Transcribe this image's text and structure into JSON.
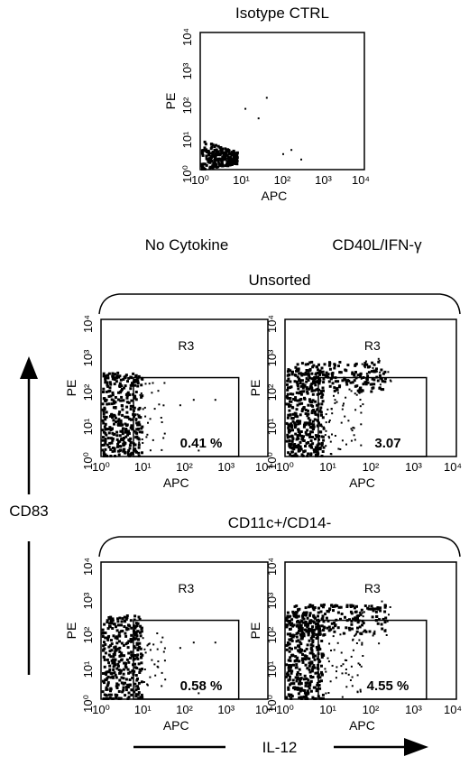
{
  "figure": {
    "top_title": "Isotype CTRL",
    "col_no_cytokine": "No Cytokine",
    "col_cd40l": "CD40L/IFN-γ",
    "group_unsorted": "Unsorted",
    "group_sorted": "CD11c+/CD14-",
    "y_marker": "CD83",
    "x_marker": "IL-12"
  },
  "chart_data": [
    {
      "type": "scatter",
      "title": "Isotype CTRL",
      "xlabel": "APC",
      "ylabel": "PE",
      "scale": "log",
      "xlim": [
        1,
        10000
      ],
      "ylim": [
        1,
        10000
      ],
      "ticks": [
        "10⁰",
        "10¹",
        "10²",
        "10³",
        "10⁴"
      ],
      "gate": null,
      "percentage": ""
    },
    {
      "type": "scatter",
      "group": "Unsorted",
      "condition": "No Cytokine",
      "xlabel": "APC",
      "ylabel": "PE",
      "scale": "log",
      "xlim": [
        1,
        10000
      ],
      "ylim": [
        1,
        10000
      ],
      "ticks": [
        "10⁰",
        "10¹",
        "10²",
        "10³",
        "10⁴"
      ],
      "gate": {
        "name": "R3",
        "x": [
          6,
          2000
        ],
        "y": [
          1,
          200
        ]
      },
      "percentage": "0.41 %"
    },
    {
      "type": "scatter",
      "group": "Unsorted",
      "condition": "CD40L/IFN-γ",
      "xlabel": "APC",
      "ylabel": "PE",
      "scale": "log",
      "xlim": [
        1,
        10000
      ],
      "ylim": [
        1,
        10000
      ],
      "ticks": [
        "10⁰",
        "10¹",
        "10²",
        "10³",
        "10⁴"
      ],
      "gate": {
        "name": "R3",
        "x": [
          6,
          2000
        ],
        "y": [
          1,
          200
        ]
      },
      "percentage": "3.07"
    },
    {
      "type": "scatter",
      "group": "CD11c+/CD14-",
      "condition": "No Cytokine",
      "xlabel": "APC",
      "ylabel": "PE",
      "scale": "log",
      "xlim": [
        1,
        10000
      ],
      "ylim": [
        1,
        10000
      ],
      "ticks": [
        "10⁰",
        "10¹",
        "10²",
        "10³",
        "10⁴"
      ],
      "gate": {
        "name": "R3",
        "x": [
          6,
          2000
        ],
        "y": [
          1,
          200
        ]
      },
      "percentage": "0.58 %"
    },
    {
      "type": "scatter",
      "group": "CD11c+/CD14-",
      "condition": "CD40L/IFN-γ",
      "xlabel": "APC",
      "ylabel": "PE",
      "scale": "log",
      "xlim": [
        1,
        10000
      ],
      "ylim": [
        1,
        10000
      ],
      "ticks": [
        "10⁰",
        "10¹",
        "10²",
        "10³",
        "10⁴"
      ],
      "gate": {
        "name": "R3",
        "x": [
          6,
          2000
        ],
        "y": [
          1,
          200
        ]
      },
      "percentage": "4.55 %"
    }
  ]
}
